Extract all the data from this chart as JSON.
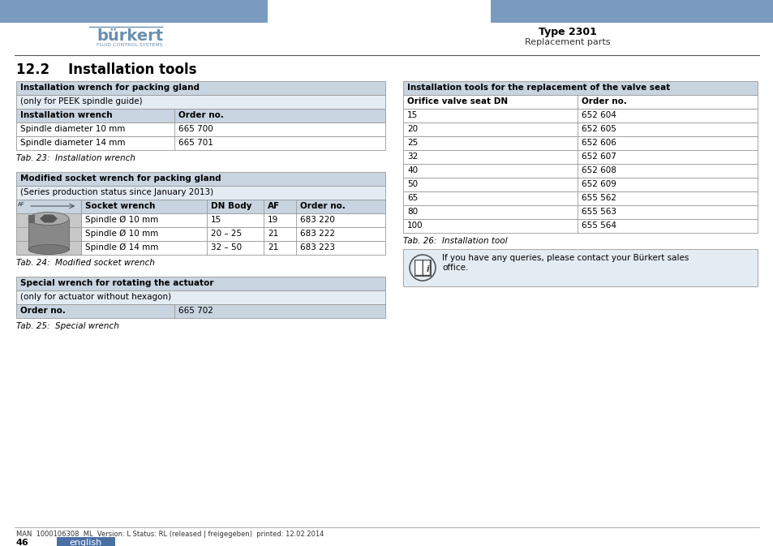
{
  "page_bg": "#ffffff",
  "header_bar_color": "#7a9bbf",
  "logo_text": "bürkert",
  "logo_sub": "FLUID CONTROL SYSTEMS",
  "type_label": "Type 2301",
  "subtitle_label": "Replacement parts",
  "section_title": "12.2    Installation tools",
  "table1_header": "Installation wrench for packing gland",
  "table1_subheader": "(only for PEEK spindle guide)",
  "table1_col1_header": "Installation wrench",
  "table1_col2_header": "Order no.",
  "table1_rows": [
    [
      "Spindle diameter 10 mm",
      "665 700"
    ],
    [
      "Spindle diameter 14 mm",
      "665 701"
    ]
  ],
  "table1_caption": "Tab. 23:  Installation wrench",
  "table2_header": "Modified socket wrench for packing gland",
  "table2_subheader": "(Series production status since January 2013)",
  "table2_col_headers": [
    "Socket wrench",
    "DN Body",
    "AF",
    "Order no."
  ],
  "table2_rows": [
    [
      "Spindle Ø 10 mm",
      "15",
      "19",
      "683 220"
    ],
    [
      "Spindle Ø 10 mm",
      "20 – 25",
      "21",
      "683 222"
    ],
    [
      "Spindle Ø 14 mm",
      "32 – 50",
      "21",
      "683 223"
    ]
  ],
  "table2_caption": "Tab. 24:  Modified socket wrench",
  "table3_header": "Special wrench for rotating the actuator",
  "table3_subheader": "(only for actuator without hexagon)",
  "table3_col1_header": "Order no.",
  "table3_value": "665 702",
  "table3_caption": "Tab. 25:  Special wrench",
  "right_table_header": "Installation tools for the replacement of the valve seat",
  "right_table_col1": "Orifice valve seat DN",
  "right_table_col2": "Order no.",
  "right_table_rows": [
    [
      "15",
      "652 604"
    ],
    [
      "20",
      "652 605"
    ],
    [
      "25",
      "652 606"
    ],
    [
      "32",
      "652 607"
    ],
    [
      "40",
      "652 608"
    ],
    [
      "50",
      "652 609"
    ],
    [
      "65",
      "655 562"
    ],
    [
      "80",
      "655 563"
    ],
    [
      "100",
      "655 564"
    ]
  ],
  "right_table_caption": "Tab. 26:  Installation tool",
  "info_text": "If you have any queries, please contact your Bürkert sales\noffice.",
  "footer_text": "MAN  1000106308  ML  Version: L Status: RL (released | freigegeben)  printed: 12.02.2014",
  "page_number": "46",
  "lang_label": "english",
  "lang_bg": "#4a6fa5",
  "table_header_bg": "#c8d4df",
  "table_subrow_bg": "#e4ecf3",
  "table_row_bg": "#ffffff",
  "table_border": "#999999",
  "info_box_bg": "#e4ecf3"
}
